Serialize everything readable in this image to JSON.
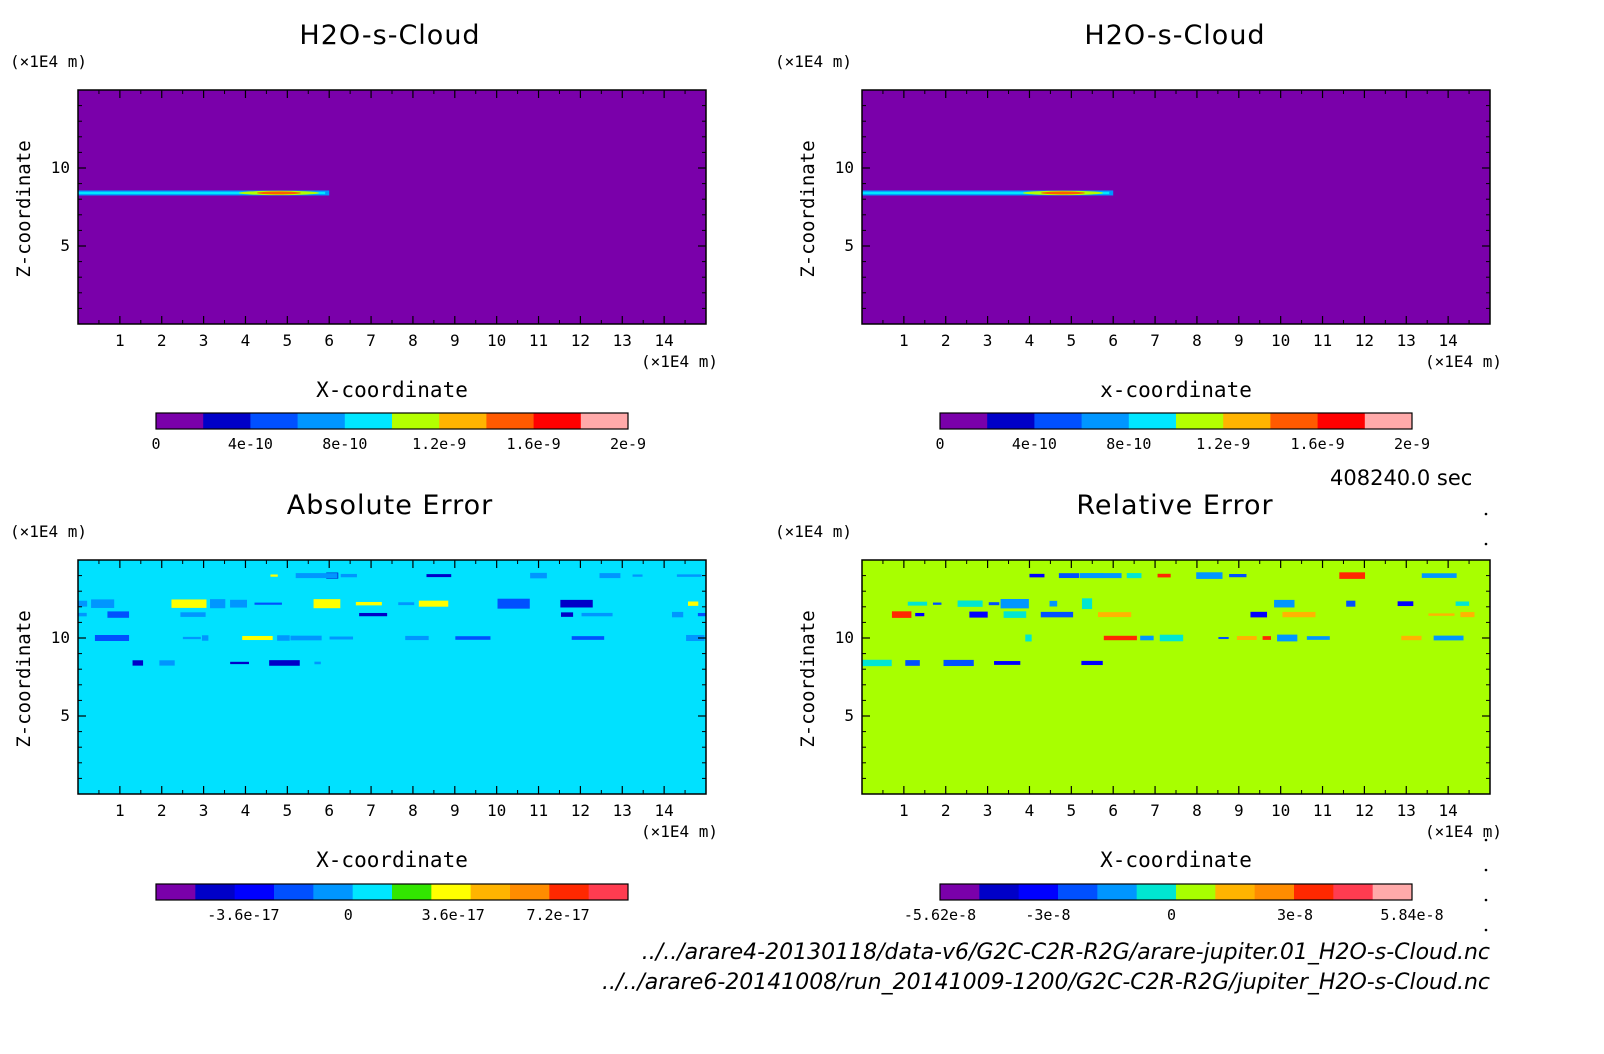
{
  "panels": [
    {
      "title": "H2O-s-Cloud",
      "zunit": "(×1E4 m)",
      "xunit": "(×1E4 m)",
      "xlabel": "X-coordinate",
      "ylabel": "Z-coordinate",
      "background": "#7a00aa",
      "colorbar": {
        "colors": [
          "#7a00aa",
          "#0000c8",
          "#0050ff",
          "#0096ff",
          "#00e6ff",
          "#b4ff00",
          "#ffb400",
          "#ff5a00",
          "#ff0000",
          "#ffaaaa"
        ],
        "ticks": [
          "0",
          "4e-10",
          "8e-10",
          "1.2e-9",
          "1.6e-9",
          "2e-9"
        ],
        "tick_values": [
          0,
          4e-10,
          8e-10,
          1.2e-09,
          1.6e-09,
          2e-09
        ],
        "range": [
          0,
          2e-09
        ]
      }
    },
    {
      "title": "H2O-s-Cloud",
      "zunit": "(×1E4 m)",
      "xunit": "(×1E4 m)",
      "xlabel": "x-coordinate",
      "ylabel": "Z-coordinate",
      "background": "#7a00aa",
      "colorbar": {
        "colors": [
          "#7a00aa",
          "#0000c8",
          "#0050ff",
          "#0096ff",
          "#00e6ff",
          "#b4ff00",
          "#ffb400",
          "#ff5a00",
          "#ff0000",
          "#ffaaaa"
        ],
        "ticks": [
          "0",
          "4e-10",
          "8e-10",
          "1.2e-9",
          "1.6e-9",
          "2e-9"
        ],
        "tick_values": [
          0,
          4e-10,
          8e-10,
          1.2e-09,
          1.6e-09,
          2e-09
        ],
        "range": [
          0,
          2e-09
        ]
      }
    },
    {
      "title": "Absolute Error",
      "zunit": "(×1E4 m)",
      "xunit": "(×1E4 m)",
      "xlabel": "X-coordinate",
      "ylabel": "Z-coordinate",
      "background": "#00e1ff",
      "colorbar": {
        "colors": [
          "#7a00aa",
          "#0000c8",
          "#0000ff",
          "#0050ff",
          "#0096ff",
          "#00e6ff",
          "#32e600",
          "#ffff00",
          "#ffb400",
          "#ff8c00",
          "#ff2800",
          "#ff3c50"
        ],
        "ticks": [
          "-3.6e-17",
          "0",
          "3.6e-17",
          "7.2e-17"
        ],
        "tick_values": [
          -3.6e-17,
          0,
          3.6e-17,
          7.2e-17
        ],
        "range": [
          -6.6e-17,
          9.6e-17
        ]
      }
    },
    {
      "title": "Relative Error",
      "zunit": "(×1E4 m)",
      "xunit": "(×1E4 m)",
      "xlabel": "X-coordinate",
      "ylabel": "Z-coordinate",
      "background": "#a8ff00",
      "colorbar": {
        "colors": [
          "#7a00aa",
          "#0000c8",
          "#0000ff",
          "#0050ff",
          "#0096ff",
          "#00e6d2",
          "#a8ff00",
          "#ffb400",
          "#ff8c00",
          "#ff2800",
          "#ff3c50",
          "#ffaaaa"
        ],
        "ticks": [
          "-5.62e-8",
          "-3e-8",
          "0",
          "3e-8",
          "5.84e-8"
        ],
        "tick_values": [
          -5.62e-08,
          -3e-08,
          0,
          3e-08,
          5.84e-08
        ],
        "range": [
          -5.62e-08,
          5.84e-08
        ]
      }
    }
  ],
  "time_label": "408240.0 sec",
  "file_paths": [
    "../../arare4-20130118/data-v6/G2C-C2R-R2G/arare-jupiter.01_H2O-s-Cloud.nc",
    "../../arare6-20141008/run_20141009-1200/G2C-C2R-R2G/jupiter_H2O-s-Cloud.nc"
  ],
  "chart_data": [
    {
      "type": "heatmap",
      "title": "H2O-s-Cloud",
      "xlabel": "X-coordinate",
      "ylabel": "Z-coordinate",
      "x_unit": "(×1E4 m)",
      "y_unit": "(×1E4 m)",
      "xlim": [
        0,
        15
      ],
      "ylim": [
        0,
        15
      ],
      "xticks": [
        1,
        2,
        3,
        4,
        5,
        6,
        7,
        8,
        9,
        10,
        11,
        12,
        13,
        14
      ],
      "yticks": [
        5,
        10
      ],
      "colorbar_range": [
        0,
        2e-09
      ],
      "features": [
        {
          "z": 8.4,
          "x_range": [
            0,
            6
          ],
          "max_value": 1.6e-09,
          "max_at_x": 4.8
        }
      ]
    },
    {
      "type": "heatmap",
      "title": "H2O-s-Cloud",
      "xlabel": "x-coordinate",
      "ylabel": "Z-coordinate",
      "x_unit": "(×1E4 m)",
      "y_unit": "(×1E4 m)",
      "xlim": [
        0,
        15
      ],
      "ylim": [
        0,
        15
      ],
      "xticks": [
        1,
        2,
        3,
        4,
        5,
        6,
        7,
        8,
        9,
        10,
        11,
        12,
        13,
        14
      ],
      "yticks": [
        5,
        10
      ],
      "colorbar_range": [
        0,
        2e-09
      ],
      "features": [
        {
          "z": 8.4,
          "x_range": [
            0,
            6
          ],
          "max_value": 1.6e-09,
          "max_at_x": 4.8
        }
      ]
    },
    {
      "type": "heatmap",
      "title": "Absolute Error",
      "xlabel": "X-coordinate",
      "ylabel": "Z-coordinate",
      "x_unit": "(×1E4 m)",
      "y_unit": "(×1E4 m)",
      "xlim": [
        0,
        15
      ],
      "ylim": [
        0,
        15
      ],
      "xticks": [
        1,
        2,
        3,
        4,
        5,
        6,
        7,
        8,
        9,
        10,
        11,
        12,
        13,
        14
      ],
      "yticks": [
        5,
        10
      ],
      "colorbar_range": [
        -6.6e-17,
        9.6e-17
      ],
      "background_value": 0,
      "noise_bands_z": [
        14.0,
        12.2,
        11.5,
        10.0,
        8.4
      ]
    },
    {
      "type": "heatmap",
      "title": "Relative Error",
      "xlabel": "X-coordinate",
      "ylabel": "Z-coordinate",
      "x_unit": "(×1E4 m)",
      "y_unit": "(×1E4 m)",
      "xlim": [
        0,
        15
      ],
      "ylim": [
        0,
        15
      ],
      "xticks": [
        1,
        2,
        3,
        4,
        5,
        6,
        7,
        8,
        9,
        10,
        11,
        12,
        13,
        14
      ],
      "yticks": [
        5,
        10
      ],
      "colorbar_range": [
        -5.62e-08,
        5.84e-08
      ],
      "background_value": 0,
      "noise_bands_z": [
        14.0,
        12.2,
        11.5,
        10.0,
        8.4
      ]
    }
  ]
}
